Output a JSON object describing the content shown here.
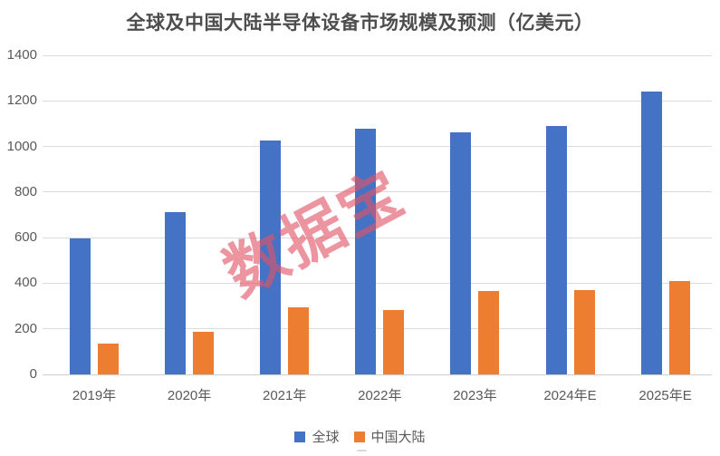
{
  "title": "全球及中国大陆半导体设备市场规模及预测（亿美元）",
  "watermark": "数据宝",
  "colors": {
    "global_series": "#4472C4",
    "china_series": "#ED7D31",
    "gridline": "#DBDBDB",
    "axis_text": "#595959",
    "title_text": "#4D4D4D",
    "watermark": "#E25466"
  },
  "chart_data": {
    "type": "bar",
    "title": "全球及中国大陆半导体设备市场规模及预测（亿美元）",
    "categories": [
      "2019年",
      "2020年",
      "2021年",
      "2022年",
      "2023年",
      "2024年E",
      "2025年E"
    ],
    "series": [
      {
        "name": "全球",
        "color": "#4472C4",
        "values": [
          598,
          712,
          1026,
          1076,
          1063,
          1090,
          1240
        ]
      },
      {
        "name": "中国大陆",
        "color": "#ED7D31",
        "values": [
          134,
          187,
          296,
          283,
          366,
          370,
          410
        ]
      }
    ],
    "xlabel": "",
    "ylabel": "",
    "ylim": [
      0,
      1400
    ],
    "ytick_step": 200,
    "grid": true,
    "legend_position": "bottom"
  }
}
